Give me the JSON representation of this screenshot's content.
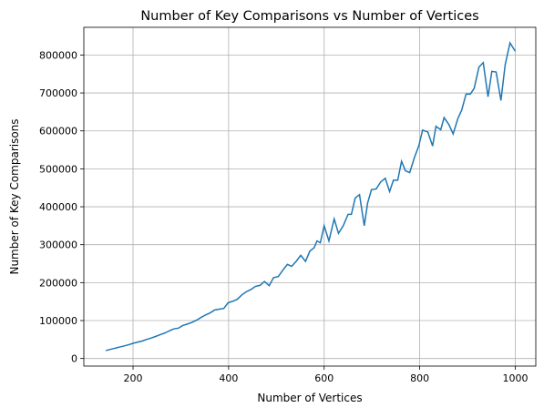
{
  "chart_data": {
    "type": "line",
    "title": "Number of Key Comparisons vs Number of Vertices",
    "xlabel": "Number of Vertices",
    "ylabel": "Number of Key Comparisons",
    "x": [
      143,
      152,
      162,
      171,
      181,
      190,
      200,
      209,
      219,
      228,
      238,
      247,
      257,
      266,
      276,
      285,
      295,
      304,
      314,
      323,
      333,
      342,
      352,
      361,
      371,
      380,
      390,
      399,
      409,
      418,
      428,
      437,
      447,
      456,
      466,
      475,
      485,
      494,
      504,
      513,
      523,
      532,
      542,
      551,
      561,
      570,
      579,
      585,
      592,
      600,
      610,
      621,
      630,
      640,
      650,
      657,
      665,
      674,
      684,
      691,
      699,
      709,
      718,
      728,
      737,
      745,
      754,
      762,
      770,
      779,
      789,
      798,
      806,
      817,
      827,
      834,
      844,
      851,
      861,
      870,
      880,
      888,
      897,
      906,
      914,
      924,
      933,
      943,
      951,
      960,
      970,
      979,
      989,
      1000
    ],
    "series": [
      {
        "name": "Key comparisons",
        "color": "#1f77b4",
        "values": [
          21000,
          24000,
          27000,
          30000,
          33000,
          36000,
          40000,
          43000,
          46000,
          50000,
          54000,
          58000,
          63000,
          67000,
          73000,
          78000,
          80000,
          87000,
          91000,
          95000,
          101000,
          108000,
          115000,
          120000,
          128000,
          130000,
          132000,
          147000,
          151000,
          156000,
          168000,
          176000,
          182000,
          190000,
          193000,
          203000,
          192000,
          213000,
          216000,
          232000,
          248000,
          243000,
          257000,
          272000,
          256000,
          283000,
          292000,
          310000,
          305000,
          350000,
          310000,
          368000,
          330000,
          350000,
          380000,
          380000,
          423000,
          432000,
          350000,
          410000,
          445000,
          447000,
          465000,
          475000,
          440000,
          470000,
          470000,
          520000,
          495000,
          490000,
          530000,
          560000,
          602000,
          597000,
          560000,
          612000,
          603000,
          635000,
          617000,
          592000,
          633000,
          655000,
          697000,
          697000,
          712000,
          768000,
          780000,
          690000,
          757000,
          755000,
          680000,
          775000,
          832000,
          810000
        ]
      }
    ],
    "xlim": [
      97,
      1043
    ],
    "xticks": [
      200,
      400,
      600,
      800,
      1000
    ],
    "ylim": [
      -20000,
      873000
    ],
    "yticks": [
      0,
      100000,
      200000,
      300000,
      400000,
      500000,
      600000,
      700000,
      800000
    ],
    "grid": true
  }
}
